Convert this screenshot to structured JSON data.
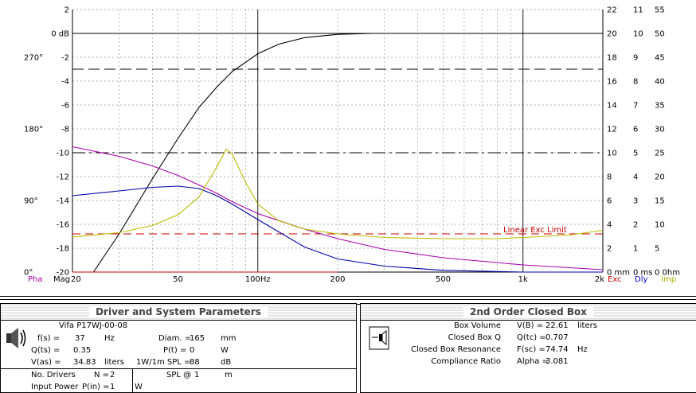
{
  "chart_data": {
    "type": "line",
    "left_axis": {
      "label": "Mag",
      "ticks": [
        2,
        0,
        -2,
        -4,
        -6,
        -8,
        -10,
        -12,
        -14,
        -16,
        -18,
        -20
      ],
      "tick_labels": [
        "2",
        "0 dB",
        "-2",
        "-4",
        "-6",
        "-8",
        "-10",
        "-12",
        "-14",
        "-16",
        "-18",
        "-20"
      ],
      "ylim": [
        -20,
        2
      ]
    },
    "phase_axis": {
      "label": "Pha",
      "ticks": [
        {
          "label": "270°",
          "value": -2
        },
        {
          "label": "180°",
          "value": -8
        },
        {
          "label": "90°",
          "value": -14
        },
        {
          "label": "0°",
          "value": -20
        }
      ]
    },
    "x_axis": {
      "scale": "log",
      "xlim": [
        20,
        2000
      ],
      "tick_labels": [
        {
          "v": 20,
          "t": "20"
        },
        {
          "v": 50,
          "t": "50"
        },
        {
          "v": 100,
          "t": "100Hz"
        },
        {
          "v": 200,
          "t": "200"
        },
        {
          "v": 500,
          "t": "500"
        },
        {
          "v": 1000,
          "t": "1k"
        },
        {
          "v": 2000,
          "t": "2k"
        }
      ]
    },
    "right_axes": [
      {
        "label": "Exc",
        "color": "#cc0000",
        "tick_labels": [
          "22",
          "20",
          "18",
          "16",
          "14",
          "12",
          "10",
          "8",
          "6",
          "4",
          "2",
          "0 mm"
        ]
      },
      {
        "label": "Dly",
        "color": "#0000cc",
        "tick_labels": [
          "11",
          "10",
          "9",
          "8",
          "7",
          "6",
          "5",
          "4",
          "3",
          "2",
          "1",
          "0 ms"
        ]
      },
      {
        "label": "Imp",
        "color": "#aaaa00",
        "tick_labels": [
          "55",
          "50",
          "45",
          "40",
          "35",
          "30",
          "25",
          "20",
          "15",
          "10",
          "5",
          "0 0hm"
        ]
      }
    ],
    "annotation": "Linear Exc Limit",
    "series": [
      {
        "color": "#000000",
        "points": [
          [
            24,
            -20
          ],
          [
            30,
            -16.8
          ],
          [
            40,
            -12.2
          ],
          [
            50,
            -8.8
          ],
          [
            60,
            -6.2
          ],
          [
            70,
            -4.5
          ],
          [
            80,
            -3.2
          ],
          [
            100,
            -1.7
          ],
          [
            120,
            -0.9
          ],
          [
            150,
            -0.35
          ],
          [
            200,
            -0.08
          ],
          [
            270,
            0
          ]
        ]
      },
      {
        "color": "#0000aa",
        "points": [
          [
            20,
            -13.6
          ],
          [
            30,
            -13.2
          ],
          [
            40,
            -12.9
          ],
          [
            50,
            -12.8
          ],
          [
            60,
            -13.0
          ],
          [
            70,
            -13.6
          ],
          [
            80,
            -14.3
          ],
          [
            100,
            -15.6
          ],
          [
            150,
            -17.9
          ],
          [
            200,
            -18.9
          ],
          [
            300,
            -19.5
          ],
          [
            500,
            -19.85
          ],
          [
            1000,
            -20
          ],
          [
            2000,
            -20
          ]
        ]
      },
      {
        "color": "#aa00aa",
        "points": [
          [
            20,
            -9.5
          ],
          [
            30,
            -10.3
          ],
          [
            40,
            -11.1
          ],
          [
            50,
            -11.9
          ],
          [
            60,
            -12.7
          ],
          [
            70,
            -13.4
          ],
          [
            80,
            -14.1
          ],
          [
            100,
            -15.1
          ],
          [
            150,
            -16.4
          ],
          [
            200,
            -17.2
          ],
          [
            300,
            -18.1
          ],
          [
            500,
            -18.8
          ],
          [
            1000,
            -19.4
          ],
          [
            2000,
            -19.8
          ]
        ]
      },
      {
        "color": "#bbbb00",
        "points": [
          [
            20,
            -17.05
          ],
          [
            30,
            -16.7
          ],
          [
            40,
            -16.1
          ],
          [
            50,
            -15.2
          ],
          [
            60,
            -13.7
          ],
          [
            70,
            -11.2
          ],
          [
            76,
            -9.7
          ],
          [
            80,
            -10.1
          ],
          [
            90,
            -12.5
          ],
          [
            100,
            -14.3
          ],
          [
            120,
            -15.7
          ],
          [
            150,
            -16.4
          ],
          [
            200,
            -16.8
          ],
          [
            300,
            -17.1
          ],
          [
            500,
            -17.2
          ],
          [
            800,
            -17.2
          ],
          [
            1000,
            -17.1
          ],
          [
            1500,
            -16.9
          ],
          [
            2000,
            -16.5
          ]
        ]
      },
      {
        "color": "#cc0000",
        "points": [
          [
            20,
            -20
          ],
          [
            200,
            -20
          ]
        ]
      }
    ],
    "reference_lines": [
      {
        "y": -3,
        "style": "long-dash",
        "color": "#000000"
      },
      {
        "y": -10,
        "style": "dash-dot",
        "color": "#000000"
      },
      {
        "y": -16.8,
        "style": "dash",
        "color": "#cc0000"
      }
    ],
    "grid": true
  },
  "driver_panel": {
    "title": "Driver and System Parameters",
    "driver_name": "Vifa P17WJ-00-08",
    "fs_label": "f(s) =",
    "fs_value": "37",
    "fs_unit": "Hz",
    "qts_label": "Q(ts) =",
    "qts_value": "0.35",
    "vas_label": "V(as) =",
    "vas_value": "34.83",
    "vas_unit": "liters",
    "diam_label": "Diam. =",
    "diam_value": "165",
    "diam_unit": "mm",
    "pt_label": "P(t) =",
    "pt_value": "0",
    "pt_unit": "W",
    "spl_label": "1W/1m SPL =",
    "spl_value": "88",
    "spl_unit": "dB",
    "drivers_label": "No. Drivers",
    "drivers_n": "N =",
    "drivers_value": "2",
    "input_label": "Input Power",
    "input_p": "P(in) =",
    "input_value": "1",
    "input_unit": "W",
    "splat_label": "SPL @",
    "splat_value": "1",
    "splat_unit": "m"
  },
  "box_panel": {
    "title": "2nd Order Closed Box",
    "rows": [
      {
        "label": "Box Volume",
        "param": "V(B) =",
        "value": "22.61",
        "unit": "liters"
      },
      {
        "label": "Closed Box Q",
        "param": "Q(tc) =",
        "value": "0.707",
        "unit": ""
      },
      {
        "label": "Closed Box Resonance",
        "param": "F(sc) =",
        "value": "74.74",
        "unit": "Hz"
      },
      {
        "label": "Compliance Ratio",
        "param": "Alpha =",
        "value": "3.081",
        "unit": ""
      }
    ]
  }
}
